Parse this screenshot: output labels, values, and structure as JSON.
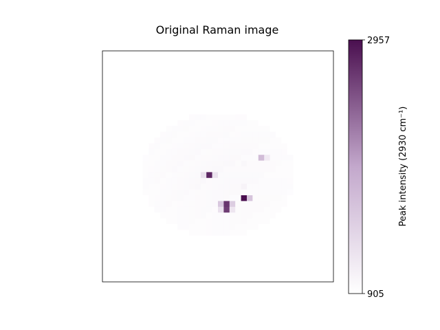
{
  "chart_data": {
    "type": "heatmap",
    "title": "Original Raman image",
    "colormap": "white-to-purple",
    "colors": {
      "low": "#ffffff",
      "high": "#4a0f4f"
    },
    "axes_ticks_visible": false,
    "colorbar": {
      "label": "Peak intensity (2930 cm⁻¹)",
      "min": 905,
      "max": 2957,
      "ticks": [
        "2957",
        "905"
      ]
    },
    "grid_size": [
      40,
      40
    ],
    "background_value": 910,
    "blob": {
      "center": [
        19.5,
        21
      ],
      "radii": [
        11.5,
        9.5
      ],
      "peak_value": 1000
    },
    "hotspots": [
      {
        "row": 21,
        "col": 18,
        "value": 2800
      },
      {
        "row": 21,
        "col": 17,
        "value": 1260
      },
      {
        "row": 21,
        "col": 19,
        "value": 1240
      },
      {
        "row": 18,
        "col": 27,
        "value": 1700
      },
      {
        "row": 18,
        "col": 28,
        "value": 1150
      },
      {
        "row": 25,
        "col": 24,
        "value": 2957
      },
      {
        "row": 25,
        "col": 25,
        "value": 1600
      },
      {
        "row": 26,
        "col": 21,
        "value": 2700
      },
      {
        "row": 27,
        "col": 21,
        "value": 2650
      },
      {
        "row": 26,
        "col": 20,
        "value": 1550
      },
      {
        "row": 26,
        "col": 22,
        "value": 1500
      },
      {
        "row": 27,
        "col": 22,
        "value": 1200
      },
      {
        "row": 27,
        "col": 20,
        "value": 1250
      },
      {
        "row": 23,
        "col": 24,
        "value": 1050
      },
      {
        "row": 19,
        "col": 24,
        "value": 1000
      }
    ]
  }
}
